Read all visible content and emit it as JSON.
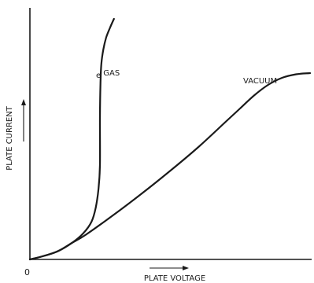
{
  "chart_data": {
    "type": "line",
    "title": "",
    "xlabel": "PLATE VOLTAGE",
    "ylabel": "PLATE CURRENT",
    "origin_label": "0",
    "xlim": [
      0,
      10
    ],
    "ylim": [
      0,
      10
    ],
    "grid": false,
    "legend": "none",
    "series": [
      {
        "name": "GAS",
        "color": "#1a1a1a",
        "x": [
          0,
          0.5,
          1.0,
          1.5,
          1.9,
          2.2,
          2.35,
          2.45,
          2.5,
          2.5,
          2.52,
          2.55,
          2.62,
          2.72,
          2.85,
          3.0
        ],
        "y": [
          0,
          0.15,
          0.35,
          0.7,
          1.1,
          1.6,
          2.2,
          3.0,
          4.0,
          6.0,
          7.5,
          8.3,
          8.9,
          9.4,
          9.8,
          10.2
        ]
      },
      {
        "name": "VACUUM",
        "color": "#1a1a1a",
        "x": [
          0,
          0.5,
          1.0,
          1.5,
          2.0,
          3.0,
          4.0,
          5.0,
          6.0,
          7.0,
          7.5,
          8.0,
          8.5,
          9.0,
          9.5,
          10.0
        ],
        "y": [
          0,
          0.15,
          0.35,
          0.7,
          1.05,
          1.9,
          2.8,
          3.75,
          4.75,
          5.85,
          6.4,
          6.95,
          7.4,
          7.7,
          7.85,
          7.9
        ]
      }
    ],
    "annotations": [
      {
        "text": "e",
        "x": 2.25,
        "y": 7.0
      }
    ]
  }
}
